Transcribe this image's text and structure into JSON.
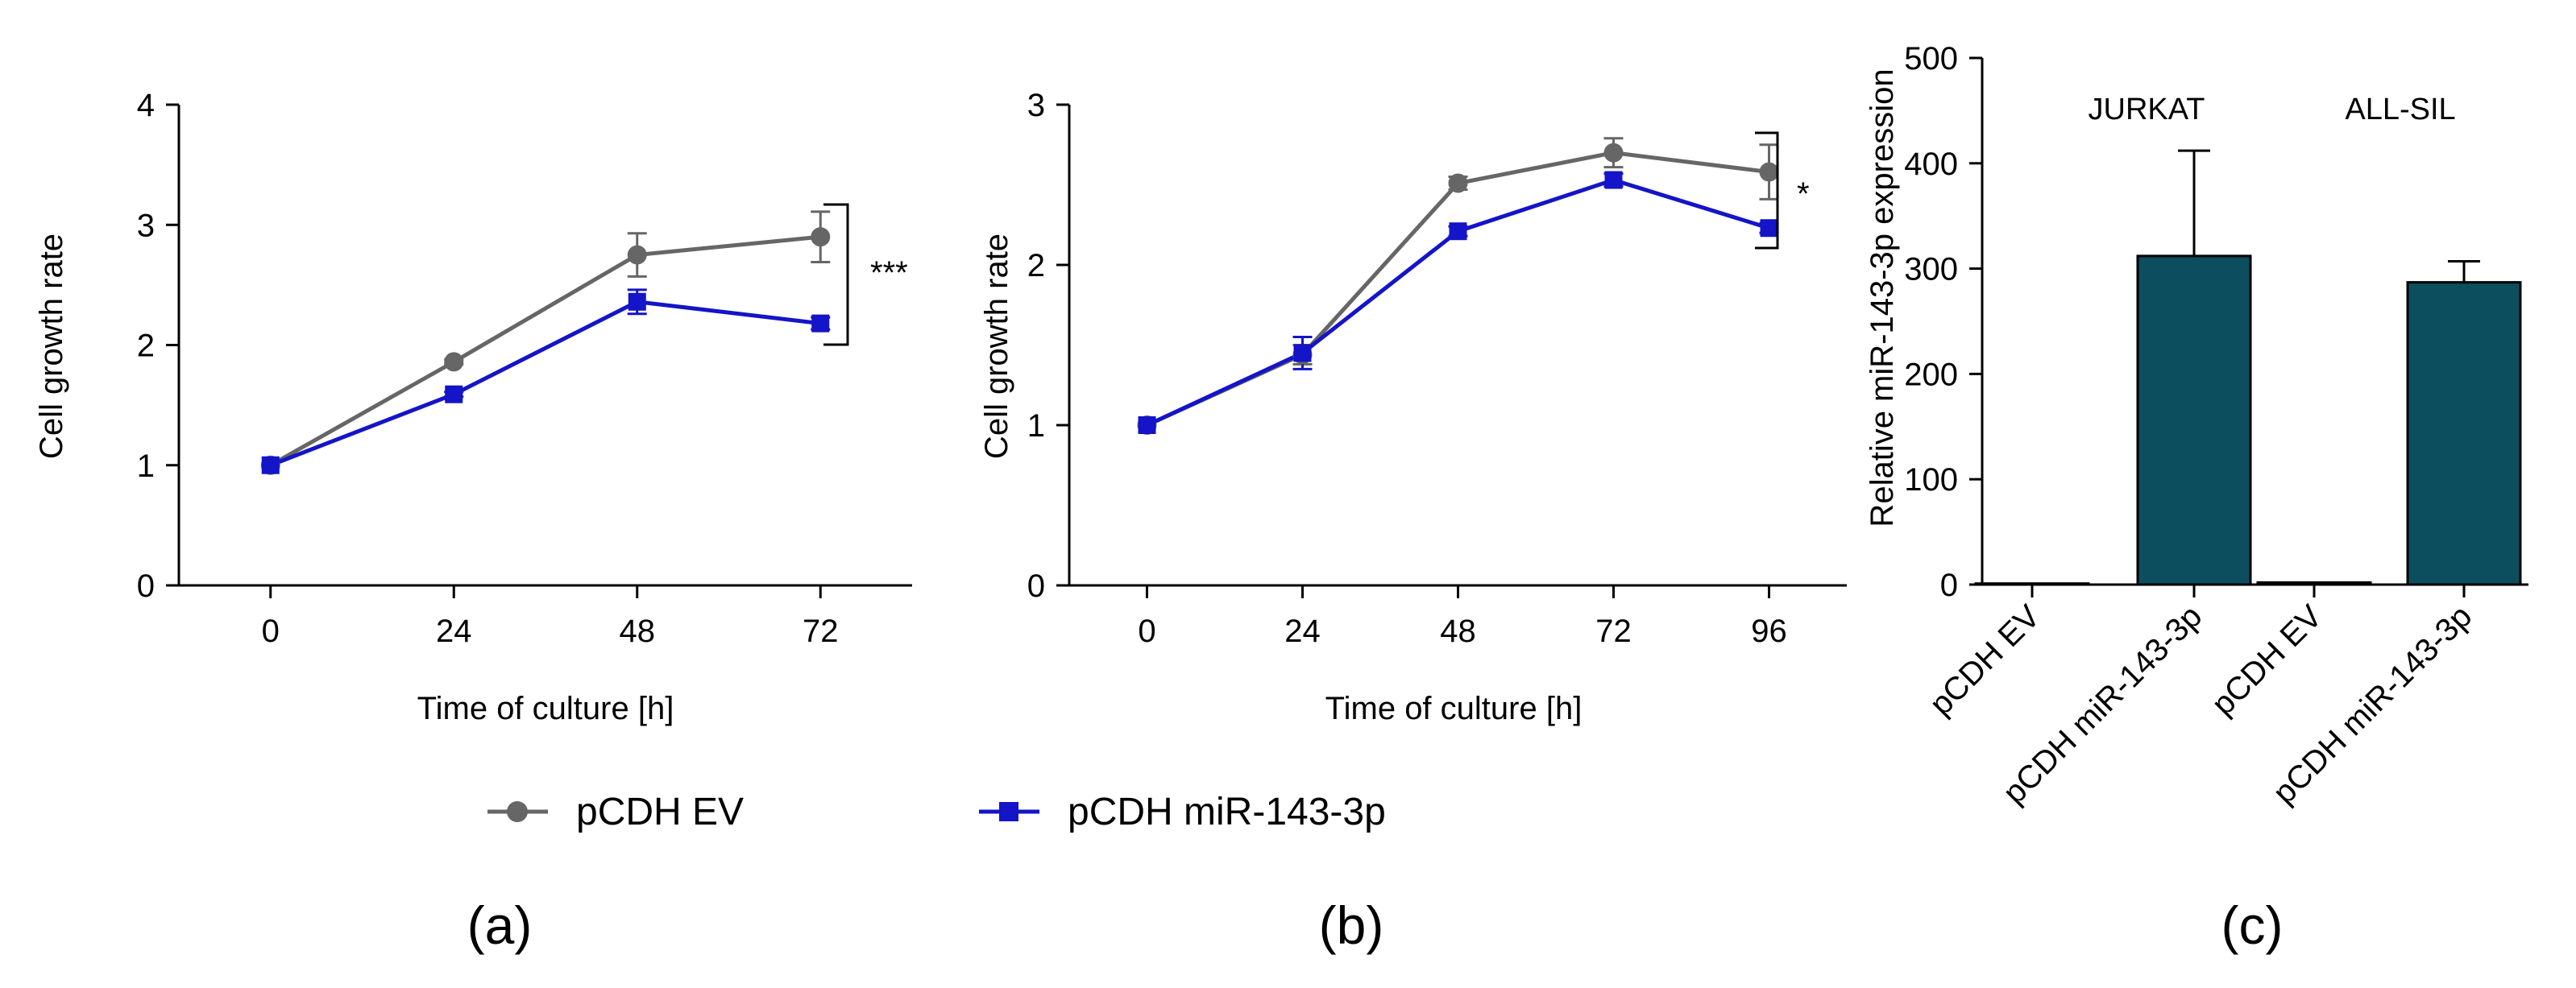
{
  "legend": {
    "items": [
      {
        "name": "pCDH EV",
        "color": "#666666",
        "marker": "circle"
      },
      {
        "name": "pCDH miR-143-3p",
        "color": "#1414c8",
        "marker": "square"
      }
    ]
  },
  "chart_data": [
    {
      "type": "line",
      "panel_label": "(a)",
      "xlabel": "Time of culture [h]",
      "ylabel": "Cell growth rate",
      "x": [
        0,
        24,
        48,
        72
      ],
      "xlim": [
        -12,
        84
      ],
      "ylim": [
        0,
        4
      ],
      "yticks": [
        0,
        1,
        2,
        3,
        4
      ],
      "grid": false,
      "series": [
        {
          "name": "pCDH EV",
          "color": "#666666",
          "marker": "circle",
          "values": [
            1.0,
            1.86,
            2.75,
            2.9
          ],
          "errors": [
            0,
            0.02,
            0.18,
            0.21
          ]
        },
        {
          "name": "pCDH miR-143-3p",
          "color": "#1414c8",
          "marker": "square",
          "values": [
            1.0,
            1.59,
            2.36,
            2.18
          ],
          "errors": [
            0,
            0.02,
            0.1,
            0.05
          ]
        }
      ],
      "significance": "***"
    },
    {
      "type": "line",
      "panel_label": "(b)",
      "xlabel": "Time of culture [h]",
      "ylabel": "Cell growth rate",
      "x": [
        0,
        24,
        48,
        72,
        96
      ],
      "xlim": [
        -12,
        108
      ],
      "ylim": [
        0,
        3
      ],
      "yticks": [
        0,
        1,
        2,
        3
      ],
      "grid": false,
      "series": [
        {
          "name": "pCDH EV",
          "color": "#666666",
          "marker": "circle",
          "values": [
            1.0,
            1.44,
            2.51,
            2.7,
            2.58
          ],
          "errors": [
            0,
            0.06,
            0.04,
            0.09,
            0.17
          ]
        },
        {
          "name": "pCDH miR-143-3p",
          "color": "#1414c8",
          "marker": "square",
          "values": [
            1.0,
            1.45,
            2.21,
            2.53,
            2.23
          ],
          "errors": [
            0,
            0.1,
            0.03,
            0.04,
            0.03
          ]
        }
      ],
      "significance": "*"
    },
    {
      "type": "bar",
      "panel_label": "(c)",
      "xlabel": "",
      "ylabel": "Relative miR-143-3p expression",
      "categories": [
        "pCDH EV",
        "pCDH miR-143-3p",
        "pCDH EV",
        "pCDH miR-143-3p"
      ],
      "groups": [
        "JURKAT",
        "ALL-SIL"
      ],
      "values": [
        1,
        312,
        2,
        287
      ],
      "errors": [
        0,
        100,
        0,
        20
      ],
      "ylim": [
        0,
        500
      ],
      "yticks": [
        0,
        100,
        200,
        300,
        400,
        500
      ],
      "bar_color": "#0c4e5e",
      "grid": false
    }
  ]
}
